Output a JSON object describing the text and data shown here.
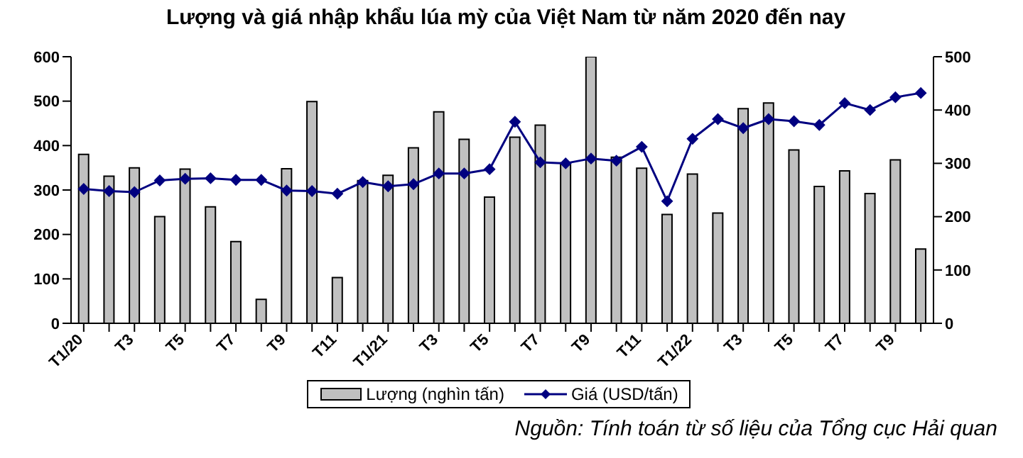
{
  "chart_data": {
    "type": "bar",
    "title": "Lượng và giá nhập khẩu lúa mỳ của Việt Nam từ năm 2020 đến nay",
    "categories": [
      "T1/20",
      null,
      "T3",
      null,
      "T5",
      null,
      "T7",
      null,
      "T9",
      null,
      "T11",
      null,
      "T1/21",
      null,
      "T3",
      null,
      "T5",
      null,
      "T7",
      null,
      "T9",
      null,
      "T11",
      null,
      "T1/22",
      null,
      "T3",
      null,
      "T5",
      null,
      "T7",
      null,
      "T9",
      null
    ],
    "series": [
      {
        "name": "Lượng (nghìn tấn)",
        "color": "#c0c0c0",
        "values": [
          380,
          331,
          350,
          240,
          347,
          262,
          184,
          54,
          348,
          499,
          103,
          321,
          333,
          395,
          476,
          414,
          284,
          419,
          446,
          361,
          600,
          374,
          349,
          245,
          336,
          248,
          483,
          496,
          390,
          308,
          343,
          292,
          368,
          167
        ]
      },
      {
        "name": "Giá (USD/tấn)",
        "type": "line",
        "axis": "y2",
        "color": "#000080",
        "values": [
          252,
          248,
          246,
          268,
          271,
          272,
          269,
          269,
          249,
          248,
          243,
          265,
          257,
          261,
          281,
          281,
          289,
          378,
          302,
          300,
          309,
          305,
          331,
          229,
          346,
          383,
          366,
          383,
          379,
          372,
          413,
          400,
          424,
          432
        ]
      }
    ],
    "ylim": [
      0,
      600
    ],
    "yticks": [
      0,
      100,
      200,
      300,
      400,
      500,
      600
    ],
    "y2lim": [
      0,
      500
    ],
    "y2ticks": [
      0,
      100,
      200,
      300,
      400,
      500
    ],
    "marker": "diamond",
    "grid": false,
    "legend": "bottom",
    "annotations": [
      "Nguồn: Tính toán từ số liệu của Tổng cục Hải quan"
    ]
  }
}
